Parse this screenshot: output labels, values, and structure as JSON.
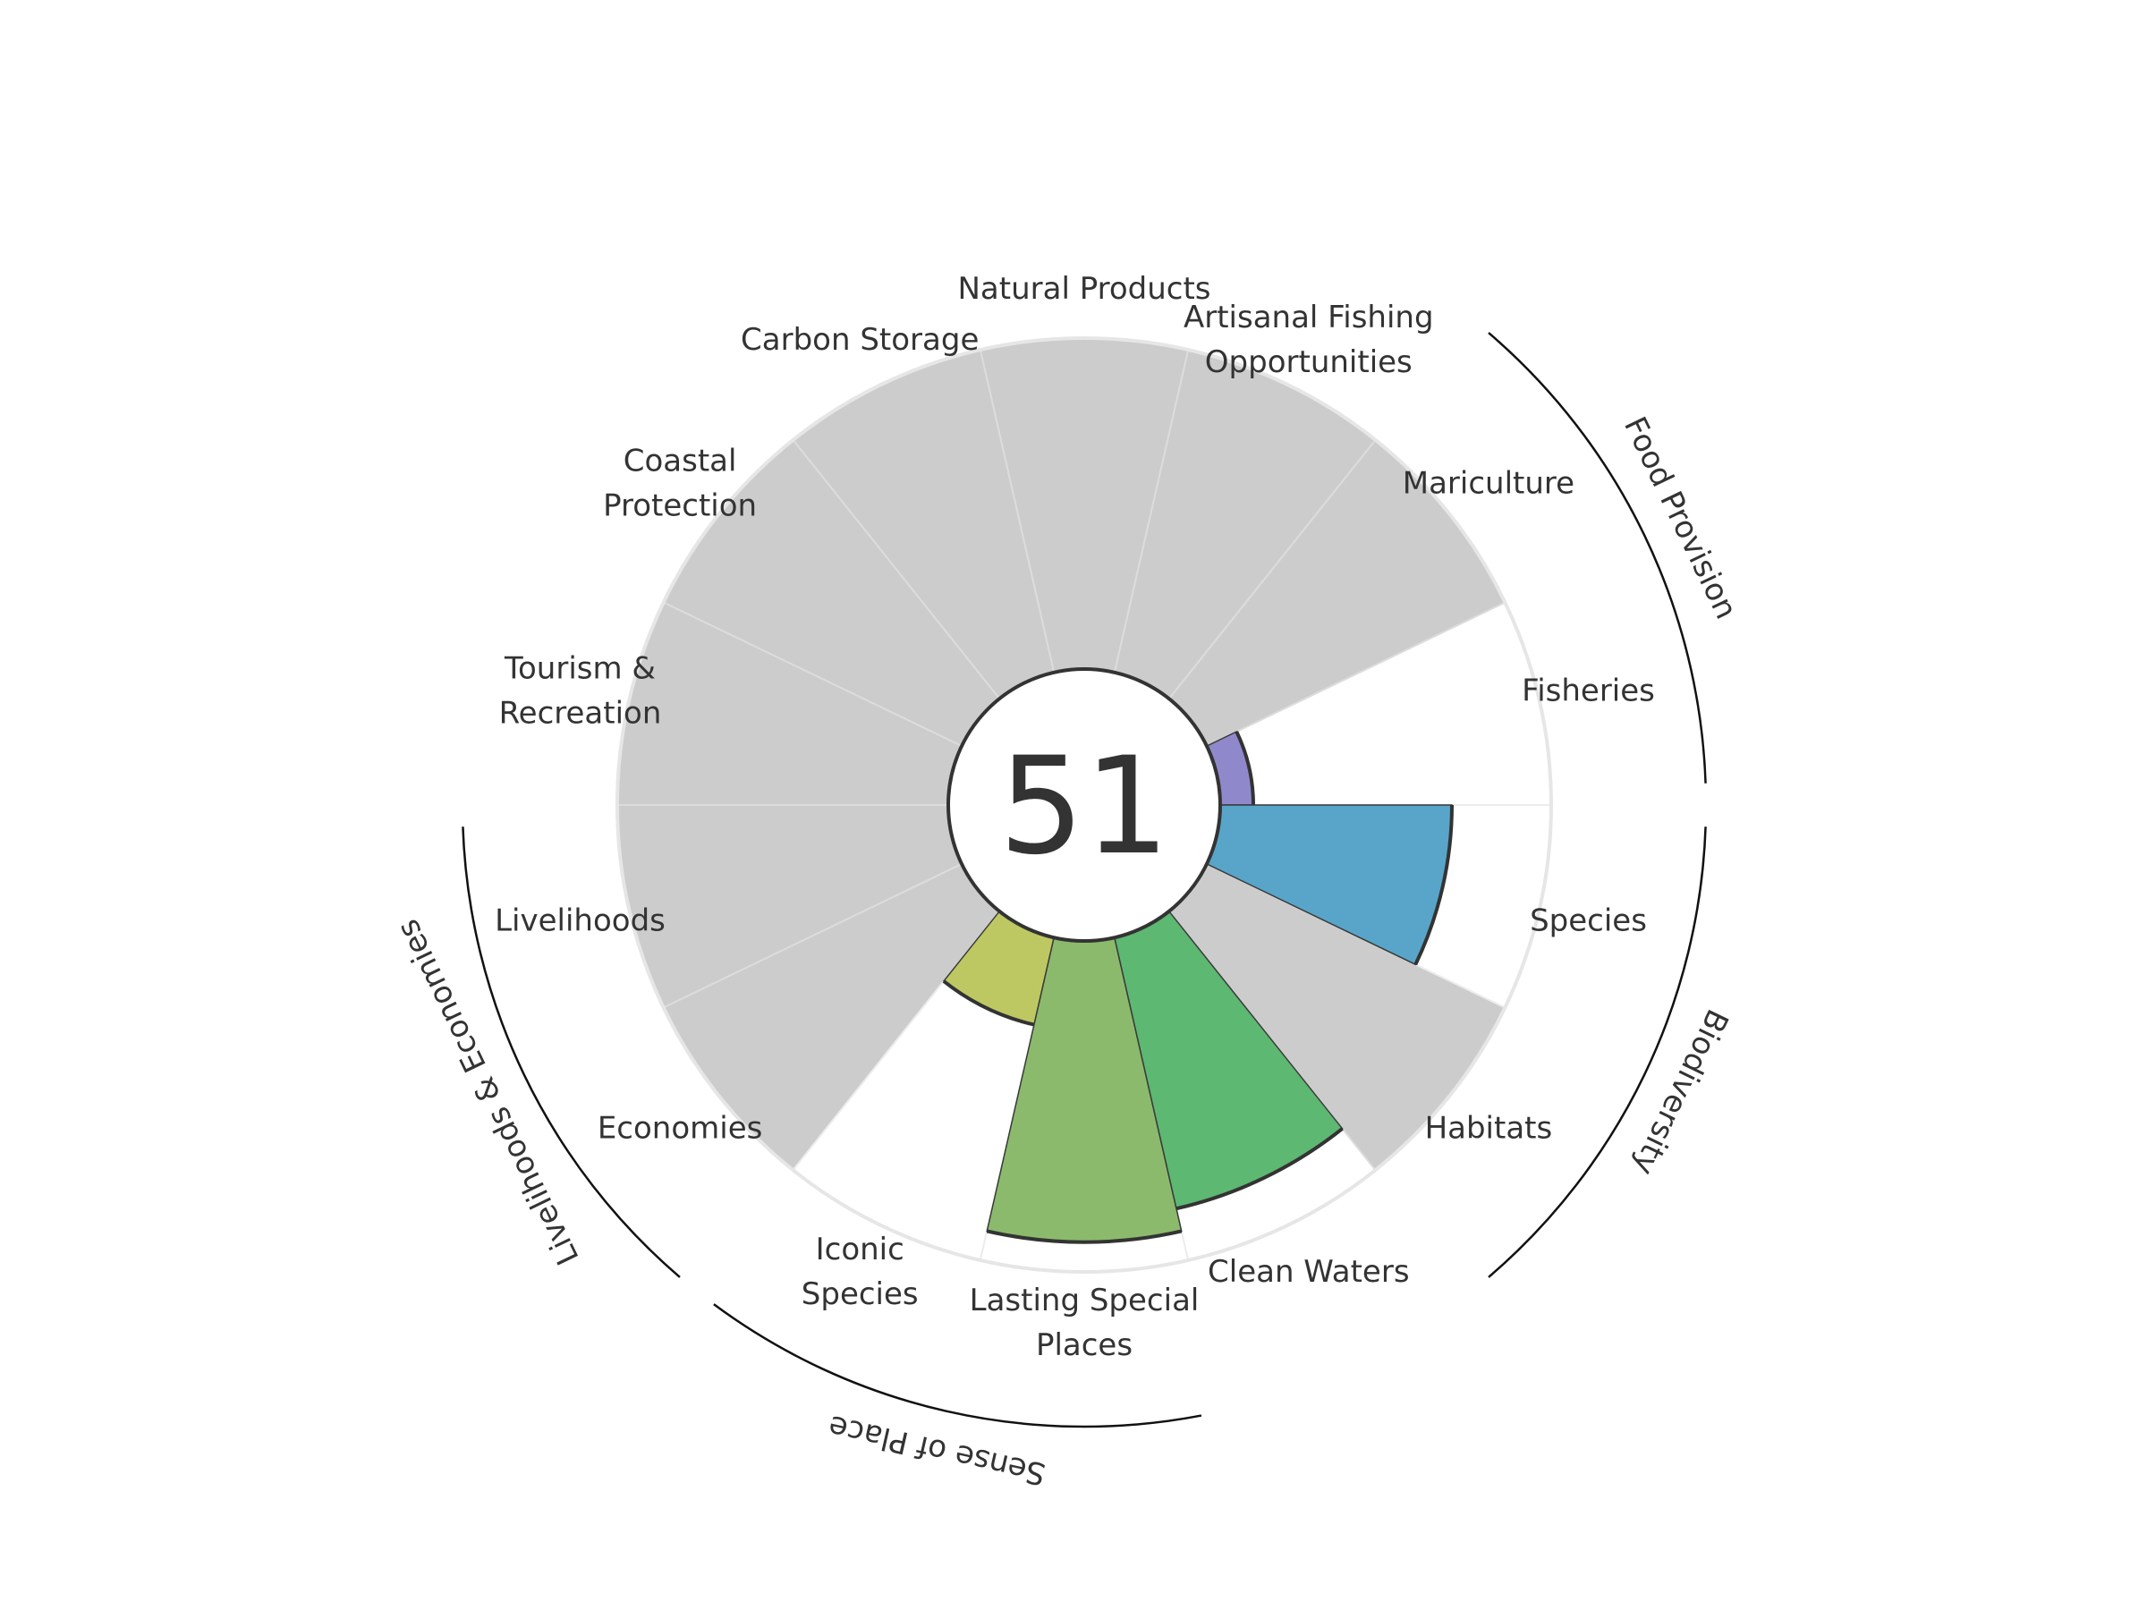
{
  "chart_data": {
    "type": "polar-bar",
    "overall_score": "51",
    "max_value": 100,
    "goals": [
      {
        "name": "Fisheries",
        "label_lines": [
          "Fisheries"
        ],
        "value": 10,
        "color": "#8f89cc"
      },
      {
        "name": "Mariculture",
        "label_lines": [
          "Mariculture"
        ],
        "value": null,
        "color": null
      },
      {
        "name": "Artisanal Fishing Opportunities",
        "label_lines": [
          "Artisanal Fishing",
          "Opportunities"
        ],
        "value": null,
        "color": null
      },
      {
        "name": "Natural Products",
        "label_lines": [
          "Natural Products"
        ],
        "value": null,
        "color": null
      },
      {
        "name": "Carbon Storage",
        "label_lines": [
          "Carbon Storage"
        ],
        "value": null,
        "color": null
      },
      {
        "name": "Coastal Protection",
        "label_lines": [
          "Coastal",
          "Protection"
        ],
        "value": null,
        "color": null
      },
      {
        "name": "Tourism & Recreation",
        "label_lines": [
          "Tourism &",
          "Recreation"
        ],
        "value": null,
        "color": null
      },
      {
        "name": "Livelihoods",
        "label_lines": [
          "Livelihoods"
        ],
        "value": null,
        "color": null
      },
      {
        "name": "Economies",
        "label_lines": [
          "Economies"
        ],
        "value": null,
        "color": null
      },
      {
        "name": "Iconic Species",
        "label_lines": [
          "Iconic",
          "Species"
        ],
        "value": 27,
        "color": "#bec862"
      },
      {
        "name": "Lasting Special Places",
        "label_lines": [
          "Lasting Special",
          "Places"
        ],
        "value": 91,
        "color": "#8bba6c"
      },
      {
        "name": "Clean Waters",
        "label_lines": [
          "Clean Waters"
        ],
        "value": 84,
        "color": "#5db872"
      },
      {
        "name": "Habitats",
        "label_lines": [
          "Habitats"
        ],
        "value": null,
        "color": null
      },
      {
        "name": "Species",
        "label_lines": [
          "Species"
        ],
        "value": 70,
        "color": "#58a5c9"
      }
    ],
    "groups": [
      {
        "name": "Food Provision",
        "goals": [
          "Fisheries",
          "Mariculture"
        ]
      },
      {
        "name": "Biodiversity",
        "goals": [
          "Habitats",
          "Species"
        ]
      },
      {
        "name": "Sense of Place",
        "goals": [
          "Iconic Species",
          "Lasting Special Places"
        ]
      },
      {
        "name": "Livelihoods & Economies",
        "goals": [
          "Livelihoods",
          "Economies"
        ]
      }
    ],
    "colors": {
      "no_data": "#cccccc",
      "background_petal": "#ffffff",
      "ring": "#e6e6e6",
      "outline": "#333333"
    }
  }
}
